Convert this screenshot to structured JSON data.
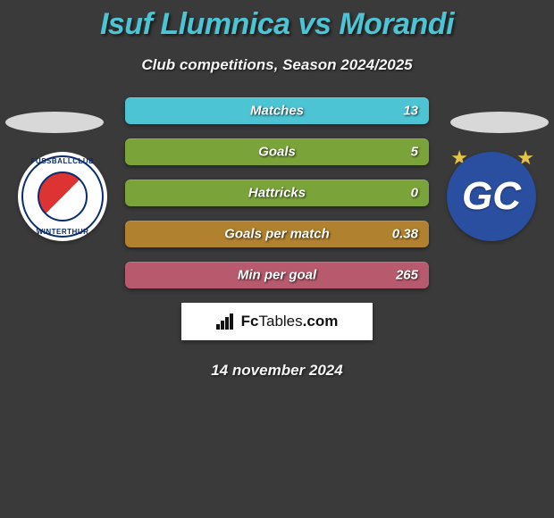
{
  "title": "Isuf Llumnica vs Morandi",
  "subtitle": "Club competitions, Season 2024/2025",
  "date": "14 november 2024",
  "brand": "FcTables.com",
  "colors": {
    "background": "#3a3a3a",
    "title": "#4cc4d4",
    "text": "#f5f5f5",
    "disc": "#d8d8d8",
    "star": "#e6c447"
  },
  "clubs": {
    "left": {
      "name": "FC Winterthur",
      "ring_text_top": "FUSSBALLCLUB",
      "ring_text_bottom": "WINTERTHUR"
    },
    "right": {
      "name": "Grasshopper Club",
      "mono": "GC",
      "bg": "#2a4ea0"
    }
  },
  "bars": [
    {
      "label": "Matches",
      "value": "13",
      "color": "#4cc4d4"
    },
    {
      "label": "Goals",
      "value": "5",
      "color": "#7aa33a"
    },
    {
      "label": "Hattricks",
      "value": "0",
      "color": "#7aa33a"
    },
    {
      "label": "Goals per match",
      "value": "0.38",
      "color": "#b0812e"
    },
    {
      "label": "Min per goal",
      "value": "265",
      "color": "#b85a6d"
    }
  ]
}
